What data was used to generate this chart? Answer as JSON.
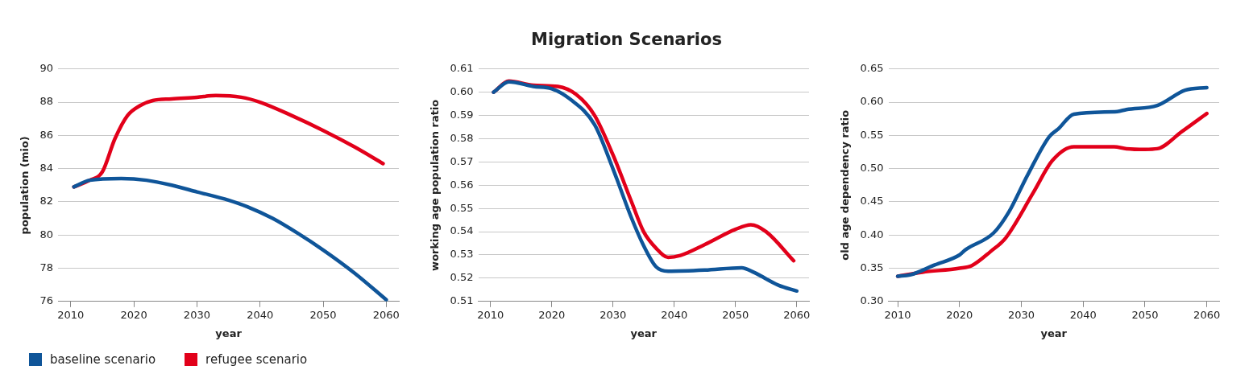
{
  "chart_data": [
    {
      "type": "line",
      "xlabel": "year",
      "ylabel": "population (mio)",
      "xlim": [
        2008,
        2062
      ],
      "xticks": [
        2010,
        2020,
        2030,
        2040,
        2050,
        2060
      ],
      "ylim": [
        76,
        90
      ],
      "yticks": [
        76,
        78,
        80,
        82,
        84,
        86,
        88,
        90
      ],
      "grid": "y",
      "legend": "bottom left",
      "marker": "none",
      "line_style": "solid",
      "series": [
        {
          "name": "baseline scenario",
          "color": "#0f5599",
          "x": [
            2010.5,
            2013,
            2018,
            2022,
            2026,
            2030,
            2035,
            2038,
            2042,
            2046,
            2050,
            2055,
            2060
          ],
          "values": [
            82.9,
            83.3,
            83.4,
            83.3,
            83.0,
            82.6,
            82.1,
            81.7,
            81.0,
            80.1,
            79.1,
            77.7,
            76.1
          ]
        },
        {
          "name": "refugee scenario",
          "color": "#e2001a",
          "x": [
            2010.5,
            2013,
            2015,
            2017,
            2019,
            2021,
            2023,
            2026,
            2030,
            2033,
            2037,
            2040,
            2045,
            2050,
            2055,
            2059.5
          ],
          "values": [
            82.9,
            83.3,
            83.8,
            85.8,
            87.2,
            87.8,
            88.1,
            88.2,
            88.3,
            88.4,
            88.3,
            88.0,
            87.2,
            86.3,
            85.3,
            84.3
          ]
        }
      ]
    },
    {
      "type": "line",
      "title": "Migration Scenarios",
      "xlabel": "year",
      "ylabel": "working age population ratio",
      "xlim": [
        2008,
        2062
      ],
      "xticks": [
        2010,
        2020,
        2030,
        2040,
        2050,
        2060
      ],
      "ylim": [
        0.51,
        0.61
      ],
      "yticks": [
        0.51,
        0.52,
        0.53,
        0.54,
        0.55,
        0.56,
        0.57,
        0.58,
        0.59,
        {
          "value": 0.6,
          "label": "0.60"
        },
        0.61
      ],
      "grid": "y",
      "marker": "none",
      "line_style": "solid",
      "series": [
        {
          "color": "#0f5599",
          "x": [
            2010.5,
            2013,
            2017,
            2020,
            2023,
            2027,
            2030,
            2033,
            2035,
            2037,
            2039,
            2045,
            2051,
            2053,
            2057,
            2060
          ],
          "values": [
            0.6,
            0.6045,
            0.6025,
            0.6015,
            0.597,
            0.586,
            0.567,
            0.546,
            0.534,
            0.525,
            0.523,
            0.5235,
            0.5245,
            0.5225,
            0.517,
            0.5145
          ]
        },
        {
          "color": "#e2001a",
          "x": [
            2010.5,
            2013,
            2017,
            2021,
            2024,
            2027,
            2030,
            2033,
            2035,
            2037,
            2039,
            2041,
            2045,
            2050,
            2052.5,
            2055,
            2059.5
          ],
          "values": [
            0.6,
            0.6048,
            0.603,
            0.6025,
            0.599,
            0.59,
            0.573,
            0.553,
            0.54,
            0.533,
            0.529,
            0.5298,
            0.5345,
            0.541,
            0.543,
            0.54,
            0.5275
          ]
        }
      ]
    },
    {
      "type": "line",
      "xlabel": "year",
      "ylabel": "old age dependency ratio",
      "xlim": [
        2008.5,
        2062
      ],
      "xticks": [
        2010,
        2020,
        2030,
        2040,
        2050,
        2060
      ],
      "ylim": [
        0.3,
        0.65
      ],
      "yticks": [
        {
          "value": 0.3,
          "label": "0.30"
        },
        0.35,
        {
          "value": 0.4,
          "label": "0.40"
        },
        0.45,
        {
          "value": 0.5,
          "label": "0.50"
        },
        0.55,
        {
          "value": 0.6,
          "label": "0.60"
        },
        0.65
      ],
      "grid": "y",
      "marker": "none",
      "line_style": "solid",
      "series": [
        {
          "color": "#0f5599",
          "x": [
            2010,
            2012,
            2016,
            2020,
            2021,
            2025.5,
            2028,
            2031,
            2034.5,
            2036,
            2038.5,
            2045.5,
            2047,
            2052,
            2056.5,
            2060
          ],
          "values": [
            0.338,
            0.34,
            0.355,
            0.37,
            0.378,
            0.403,
            0.435,
            0.49,
            0.548,
            0.56,
            0.582,
            0.586,
            0.589,
            0.595,
            0.618,
            0.622
          ]
        },
        {
          "color": "#e2001a",
          "x": [
            2010,
            2014,
            2020,
            2022,
            2025,
            2027.5,
            2032,
            2035,
            2038.5,
            2045,
            2047,
            2050,
            2052,
            2056,
            2060
          ],
          "values": [
            0.338,
            0.344,
            0.35,
            0.354,
            0.375,
            0.396,
            0.465,
            0.512,
            0.533,
            0.533,
            0.53,
            0.529,
            0.53,
            0.556,
            0.583
          ]
        }
      ]
    }
  ]
}
